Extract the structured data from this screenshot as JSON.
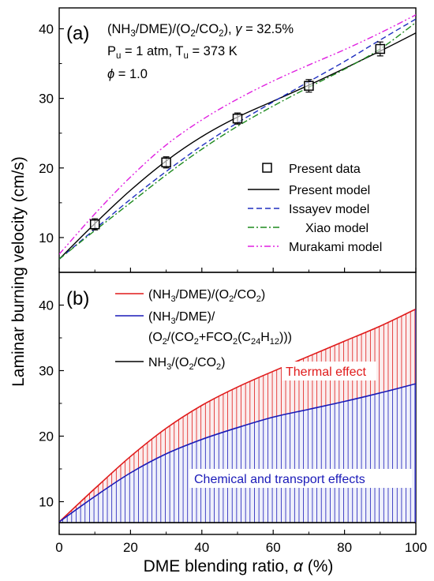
{
  "figure": {
    "ylabel": "Laminar burning velocity (cm/s)",
    "xlabel_main": "DME blending ratio, ",
    "xlabel_symbol": "α",
    "xlabel_unit": " (%)",
    "x_ticks": [
      "0",
      "20",
      "40",
      "60",
      "80",
      "100"
    ]
  },
  "chart_data": [
    {
      "type": "line",
      "panel_label": "(a)",
      "annotation": {
        "line1_pre": "(NH",
        "line1_sub1": "3",
        "line1_mid": "/DME)/(O",
        "line1_sub2": "2",
        "line1_mid2": "/CO",
        "line1_sub3": "2",
        "line1_post": "), ",
        "line1_gamma": "γ",
        "line1_gamma_value": " = 32.5%",
        "line2_p": "P",
        "line2_p_sub": "u",
        "line2_p_val": " = 1 atm, T",
        "line2_t_sub": "u",
        "line2_t_val": " = 373 K",
        "line3_phi": "ϕ",
        "line3_phi_val": " = 1.0"
      },
      "xlim": [
        0,
        100
      ],
      "ylim": [
        5,
        43
      ],
      "yticks": [
        "10",
        "20",
        "30",
        "40"
      ],
      "markers": {
        "name": "Present data",
        "x": [
          10,
          30,
          50,
          70,
          90
        ],
        "y": [
          11.9,
          20.8,
          27.1,
          31.8,
          37.1
        ],
        "err": [
          0.8,
          0.8,
          0.8,
          0.9,
          1.0
        ]
      },
      "series": [
        {
          "name": "Present model",
          "color": "#000000",
          "dash": "",
          "x": [
            0,
            10,
            20,
            30,
            40,
            50,
            60,
            70,
            80,
            90,
            100
          ],
          "y": [
            6.9,
            12.0,
            16.8,
            21.0,
            24.5,
            27.3,
            29.6,
            31.9,
            34.3,
            36.8,
            39.4
          ]
        },
        {
          "name": "Issayev model",
          "color": "#1f2fbf",
          "dash": "7,4",
          "x": [
            0,
            10,
            20,
            30,
            40,
            50,
            60,
            70,
            80,
            90,
            100
          ],
          "y": [
            6.9,
            11.2,
            15.5,
            19.5,
            23.2,
            26.5,
            29.5,
            32.4,
            35.3,
            38.4,
            41.4
          ]
        },
        {
          "name": "Xiao model",
          "color": "#1e8a1e",
          "dash": "8,3,2,3",
          "x": [
            0,
            10,
            20,
            30,
            40,
            50,
            60,
            70,
            80,
            90,
            100
          ],
          "y": [
            6.9,
            11.0,
            15.0,
            19.0,
            22.7,
            26.0,
            28.9,
            31.6,
            34.2,
            37.1,
            40.9
          ]
        },
        {
          "name": "Murakami model",
          "color": "#e020e0",
          "dash": "8,3,2,3,2,3",
          "x": [
            0,
            10,
            20,
            30,
            40,
            50,
            60,
            70,
            80,
            90,
            100
          ],
          "y": [
            7.6,
            13.4,
            18.7,
            23.3,
            26.9,
            29.9,
            32.5,
            34.8,
            37.0,
            39.4,
            42.0
          ]
        }
      ]
    },
    {
      "type": "area",
      "panel_label": "(b)",
      "xlim": [
        0,
        100
      ],
      "ylim": [
        5,
        45
      ],
      "yticks": [
        "10",
        "20",
        "30",
        "40"
      ],
      "series": [
        {
          "name": "(NH3/DME)/(O2/CO2)",
          "color": "#e01a1a",
          "x": [
            0,
            10,
            20,
            30,
            40,
            50,
            60,
            70,
            80,
            90,
            100
          ],
          "y": [
            6.9,
            12.0,
            16.9,
            21.2,
            24.7,
            27.5,
            29.9,
            32.2,
            34.5,
            36.8,
            39.4
          ]
        },
        {
          "name": "(NH3/DME)/(O2/(CO2+FCO2(C24H12)))",
          "color": "#1a1ab8",
          "x": [
            0,
            10,
            20,
            30,
            40,
            50,
            60,
            70,
            80,
            90,
            100
          ],
          "y": [
            6.9,
            10.8,
            14.4,
            17.3,
            19.5,
            21.3,
            22.9,
            24.1,
            25.3,
            26.6,
            28.0
          ]
        },
        {
          "name": "NH3/(O2/CO2)",
          "color": "#000000",
          "x": [
            0,
            100
          ],
          "y": [
            6.8,
            6.8
          ]
        }
      ],
      "legend": {
        "l1_a": "(NH",
        "l1_s1": "3",
        "l1_b": "/DME)/(O",
        "l1_s2": "2",
        "l1_c": "/CO",
        "l1_s3": "2",
        "l1_d": ")",
        "l2_a": "(NH",
        "l2_s1": "3",
        "l2_b": "/DME)/",
        "l3_a": "(O",
        "l3_s1": "2",
        "l3_b": "/(CO",
        "l3_s2": "2",
        "l3_c": "+FCO",
        "l3_s3": "2",
        "l3_d": "(C",
        "l3_s4": "24",
        "l3_e": "H",
        "l3_s5": "12",
        "l3_f": ")))",
        "l4_a": "NH",
        "l4_s1": "3",
        "l4_b": "/(O",
        "l4_s2": "2",
        "l4_c": "/CO",
        "l4_s3": "2",
        "l4_d": ")"
      },
      "annotations": {
        "thermal": "Thermal effect",
        "chemical": "Chemical and transport effects"
      }
    }
  ]
}
